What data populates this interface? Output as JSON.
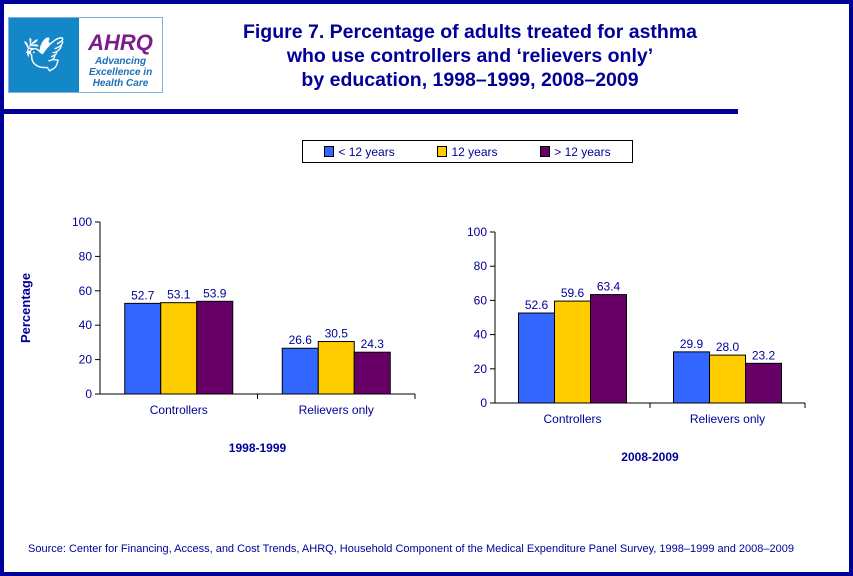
{
  "logo": {
    "seal_text": "Department of Health & Human Services USA",
    "brand": "AHRQ",
    "tagline": "Advancing Excellence in Health Care"
  },
  "title": [
    "Figure 7. Percentage of adults treated for asthma",
    "who use controllers and ‘relievers only’",
    "by education, 1998–1999, 2008–2009"
  ],
  "colors": {
    "frame": "#000099",
    "lt12": "#3366ff",
    "eq12": "#ffcc00",
    "gt12": "#660066"
  },
  "legend": [
    "< 12 years",
    "12 years",
    "> 12 years"
  ],
  "source": "Source: Center for Financing, Access, and Cost Trends, AHRQ, Household Component of the Medical Expenditure Panel Survey,  1998–1999 and 2008–2009",
  "chart_data": [
    {
      "type": "bar",
      "title": "1998-1999",
      "ylabel": "Percentage",
      "ylim": [
        0,
        100
      ],
      "yticks": [
        0,
        20,
        40,
        60,
        80,
        100
      ],
      "categories": [
        "Controllers",
        "Relievers only"
      ],
      "series": [
        {
          "name": "< 12 years",
          "values": [
            52.7,
            26.6
          ]
        },
        {
          "name": "12 years",
          "values": [
            53.1,
            30.5
          ]
        },
        {
          "name": "> 12 years",
          "values": [
            53.9,
            24.3
          ]
        }
      ]
    },
    {
      "type": "bar",
      "title": "2008-2009",
      "ylabel": "",
      "ylim": [
        0,
        100
      ],
      "yticks": [
        0,
        20,
        40,
        60,
        80,
        100
      ],
      "categories": [
        "Controllers",
        "Relievers only"
      ],
      "series": [
        {
          "name": "< 12 years",
          "values": [
            52.6,
            29.9
          ]
        },
        {
          "name": "12 years",
          "values": [
            59.6,
            28.0
          ]
        },
        {
          "name": "> 12 years",
          "values": [
            63.4,
            23.2
          ]
        }
      ]
    }
  ]
}
